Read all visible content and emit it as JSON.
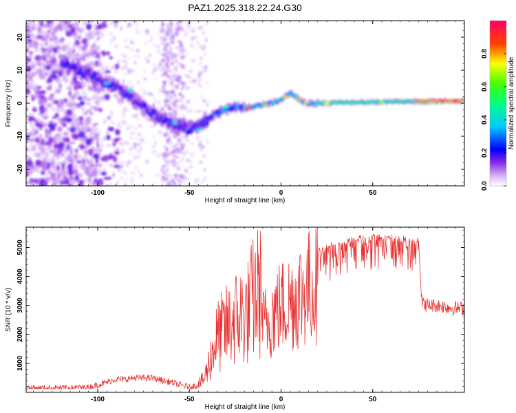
{
  "title": "PAZ1.2025.318.22.24.G30",
  "chart_data": [
    {
      "type": "heatmap",
      "title": "PAZ1.2025.318.22.24.G30",
      "xlabel": "Height of straight line (km)",
      "ylabel": "Frequency (Hz)",
      "xlim": [
        -139,
        100
      ],
      "ylim": [
        -25,
        25
      ],
      "xticks": [
        -100,
        -50,
        0,
        50
      ],
      "yticks": [
        -20,
        -10,
        0,
        10,
        20
      ],
      "ridge": {
        "x": [
          -139,
          -120,
          -105,
          -100,
          -90,
          -80,
          -70,
          -60,
          -50,
          -45,
          -40,
          -35,
          -30,
          -25,
          -20,
          -15,
          -10,
          -5,
          0,
          5,
          8,
          10,
          15,
          20,
          30,
          50,
          70,
          100
        ],
        "y": [
          15,
          12,
          9,
          7,
          5,
          1,
          -3,
          -6,
          -8,
          -7,
          -5,
          -3,
          -2,
          -1,
          -1.5,
          -1,
          -0.5,
          0,
          1,
          3,
          2,
          1,
          0,
          0,
          0.2,
          0.3,
          0.5,
          0.7
        ]
      },
      "colorbar": {
        "label": "Normalized spectral amplitude",
        "min": 0.0,
        "max": 1.0,
        "ticks": [
          "0.0",
          "0.2",
          "0.4",
          "0.6",
          "0.8"
        ]
      }
    },
    {
      "type": "line",
      "xlabel": "Height of straight line (km)",
      "ylabel": "SNR (10 * v/v)",
      "xlim": [
        -139,
        100
      ],
      "ylim": [
        0,
        5700
      ],
      "xticks": [
        -100,
        -50,
        0,
        50
      ],
      "yticks": [
        1000,
        2000,
        3000,
        4000,
        5000
      ],
      "series": [
        {
          "name": "SNR",
          "color": "#e83030",
          "x": [
            -139,
            -120,
            -105,
            -100,
            -95,
            -90,
            -85,
            -80,
            -75,
            -70,
            -65,
            -60,
            -55,
            -50,
            -45,
            -42,
            -40,
            -38,
            -36,
            -34,
            -32,
            -30,
            -28,
            -26,
            -24,
            -22,
            -20,
            -18,
            -16,
            -14,
            -12,
            -10,
            -8,
            -6,
            -4,
            -2,
            0,
            2,
            4,
            6,
            8,
            10,
            12,
            14,
            16,
            18,
            20,
            22,
            24,
            26,
            28,
            30,
            35,
            40,
            45,
            50,
            55,
            60,
            65,
            70,
            75,
            76,
            77,
            78,
            80,
            85,
            90,
            95,
            100
          ],
          "y": [
            150,
            150,
            170,
            250,
            350,
            450,
            450,
            500,
            500,
            500,
            420,
            350,
            250,
            180,
            250,
            400,
            700,
            1100,
            1500,
            1700,
            1800,
            1900,
            2000,
            2200,
            2200,
            2300,
            2300,
            2400,
            2700,
            2900,
            3000,
            3000,
            3100,
            3300,
            3600,
            3700,
            3800,
            3900,
            4000,
            4100,
            4200,
            4400,
            4500,
            4600,
            4700,
            4800,
            4900,
            4950,
            5000,
            5050,
            5100,
            5150,
            5200,
            5300,
            5350,
            5400,
            5400,
            5380,
            5350,
            5300,
            5300,
            4000,
            3100,
            3100,
            3050,
            3050,
            3000,
            2950,
            2950
          ]
        }
      ]
    }
  ]
}
